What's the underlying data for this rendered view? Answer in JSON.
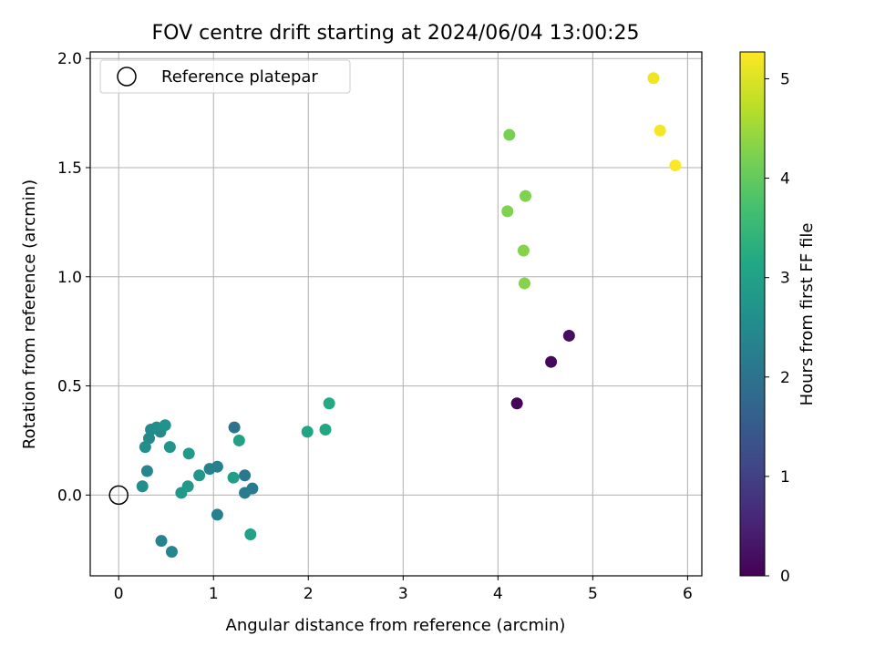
{
  "chart_data": {
    "type": "scatter",
    "title": "FOV centre drift starting at 2024/06/04 13:00:25",
    "xlabel": "Angular distance from reference (arcmin)",
    "ylabel": "Rotation from reference (arcmin)",
    "xlim": [
      -0.3,
      6.15
    ],
    "ylim": [
      -0.37,
      2.03
    ],
    "xticks": [
      0,
      1,
      2,
      3,
      4,
      5,
      6
    ],
    "xtick_labels": [
      "0",
      "1",
      "2",
      "3",
      "4",
      "5",
      "6"
    ],
    "yticks": [
      0.0,
      0.5,
      1.0,
      1.5,
      2.0
    ],
    "ytick_labels": [
      "0.0",
      "0.5",
      "1.0",
      "1.5",
      "2.0"
    ],
    "grid": true,
    "legend": {
      "placement": "top-left",
      "entries": [
        "Reference platepar"
      ]
    },
    "reference_point": {
      "x": 0,
      "y": 0
    },
    "colorbar": {
      "label": "Hours from first FF file",
      "colormap": "viridis",
      "range": [
        0,
        5.27
      ],
      "ticks": [
        0,
        1,
        2,
        3,
        4,
        5
      ],
      "tick_labels": [
        "0",
        "1",
        "2",
        "3",
        "4",
        "5"
      ]
    },
    "points": [
      {
        "x": 4.2,
        "y": 0.42,
        "hours": 0.05
      },
      {
        "x": 4.56,
        "y": 0.61,
        "hours": 0.12
      },
      {
        "x": 4.75,
        "y": 0.73,
        "hours": 0.2
      },
      {
        "x": 1.22,
        "y": 0.31,
        "hours": 2.0
      },
      {
        "x": 1.33,
        "y": 0.09,
        "hours": 2.1
      },
      {
        "x": 1.41,
        "y": 0.03,
        "hours": 2.15
      },
      {
        "x": 1.33,
        "y": 0.01,
        "hours": 2.2
      },
      {
        "x": 1.04,
        "y": 0.13,
        "hours": 2.25
      },
      {
        "x": 0.96,
        "y": 0.12,
        "hours": 2.3
      },
      {
        "x": 1.04,
        "y": -0.09,
        "hours": 2.3
      },
      {
        "x": 0.45,
        "y": -0.21,
        "hours": 2.35
      },
      {
        "x": 0.56,
        "y": -0.26,
        "hours": 2.4
      },
      {
        "x": 0.3,
        "y": 0.11,
        "hours": 2.4
      },
      {
        "x": 0.44,
        "y": 0.29,
        "hours": 2.45
      },
      {
        "x": 0.32,
        "y": 0.26,
        "hours": 2.45
      },
      {
        "x": 0.34,
        "y": 0.3,
        "hours": 2.5
      },
      {
        "x": 0.4,
        "y": 0.31,
        "hours": 2.55
      },
      {
        "x": 0.25,
        "y": 0.04,
        "hours": 2.6
      },
      {
        "x": 0.28,
        "y": 0.22,
        "hours": 2.6
      },
      {
        "x": 0.49,
        "y": 0.32,
        "hours": 2.65
      },
      {
        "x": 0.54,
        "y": 0.22,
        "hours": 2.7
      },
      {
        "x": 0.85,
        "y": 0.09,
        "hours": 2.75
      },
      {
        "x": 0.66,
        "y": 0.01,
        "hours": 2.8
      },
      {
        "x": 0.73,
        "y": 0.04,
        "hours": 2.85
      },
      {
        "x": 0.74,
        "y": 0.19,
        "hours": 2.85
      },
      {
        "x": 1.21,
        "y": 0.08,
        "hours": 2.9
      },
      {
        "x": 1.27,
        "y": 0.25,
        "hours": 2.95
      },
      {
        "x": 1.39,
        "y": -0.18,
        "hours": 3.0
      },
      {
        "x": 1.99,
        "y": 0.29,
        "hours": 3.1
      },
      {
        "x": 2.18,
        "y": 0.3,
        "hours": 3.15
      },
      {
        "x": 2.22,
        "y": 0.42,
        "hours": 3.2
      },
      {
        "x": 4.12,
        "y": 1.65,
        "hours": 4.2
      },
      {
        "x": 4.29,
        "y": 1.37,
        "hours": 4.25
      },
      {
        "x": 4.1,
        "y": 1.3,
        "hours": 4.25
      },
      {
        "x": 4.27,
        "y": 1.12,
        "hours": 4.3
      },
      {
        "x": 4.28,
        "y": 0.97,
        "hours": 4.3
      },
      {
        "x": 5.64,
        "y": 1.91,
        "hours": 5.15
      },
      {
        "x": 5.71,
        "y": 1.67,
        "hours": 5.2
      },
      {
        "x": 5.87,
        "y": 1.51,
        "hours": 5.25
      }
    ]
  }
}
